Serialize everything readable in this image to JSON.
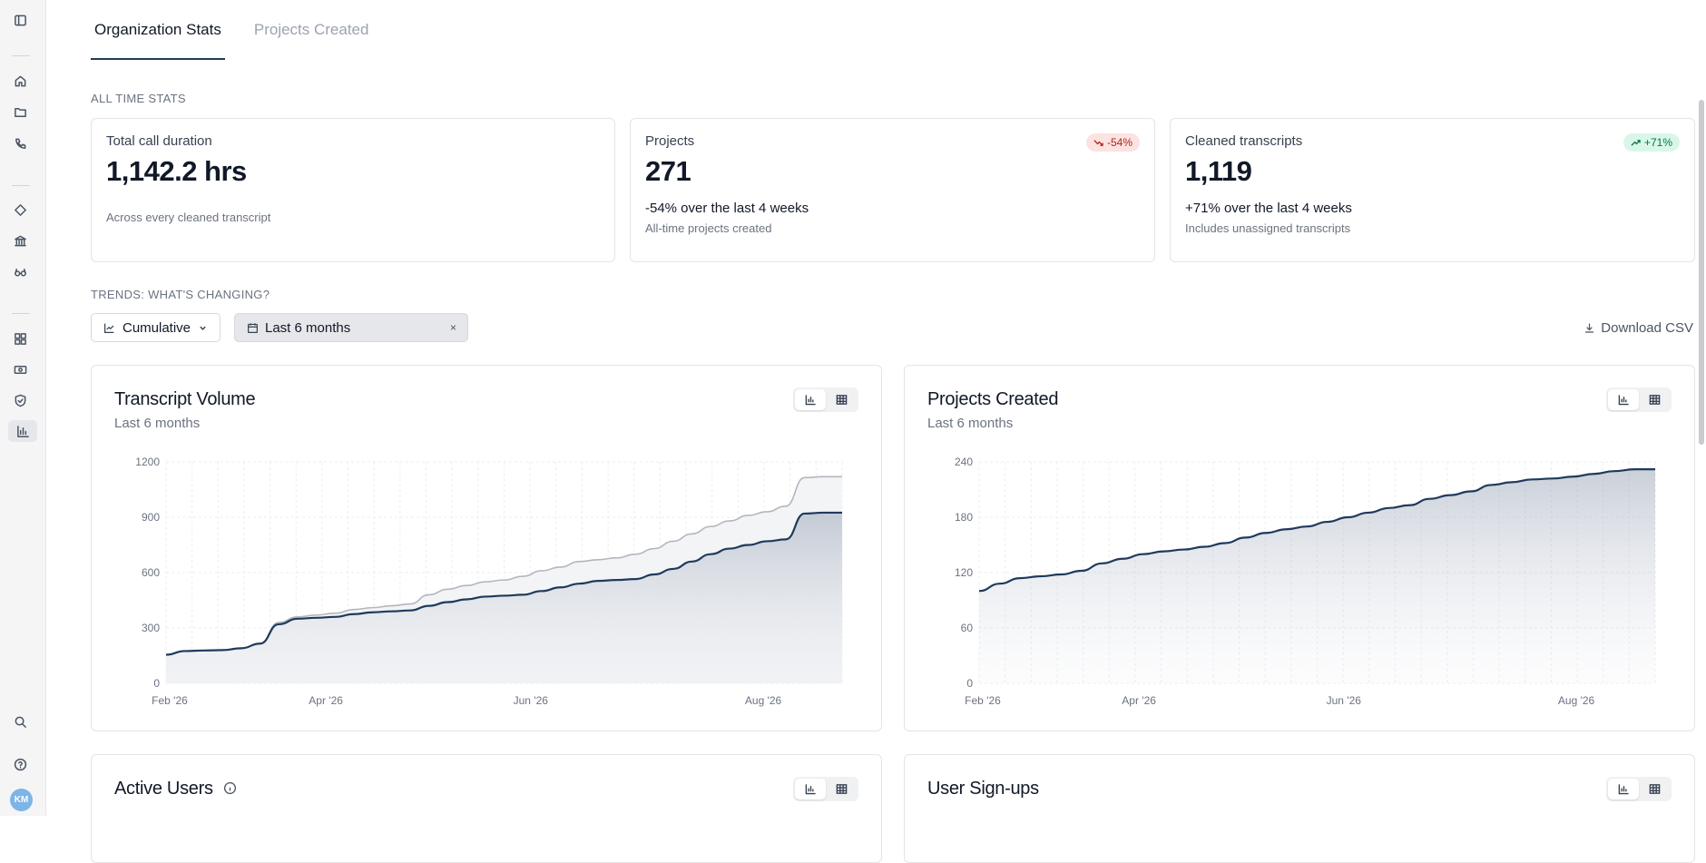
{
  "sidebar": {
    "icons": [
      "sidebar-toggle-icon",
      "home-icon",
      "folder-icon",
      "phone-icon",
      "diamond-icon",
      "bank-icon",
      "glasses-icon",
      "grid-icon",
      "money-icon",
      "shield-icon",
      "bar-chart-icon",
      "search-icon",
      "help-icon"
    ],
    "avatar": "KM"
  },
  "tabs": [
    "Organization Stats",
    "Projects Created"
  ],
  "all_time_label": "ALL TIME STATS",
  "stats": [
    {
      "title": "Total call duration",
      "value": "1,142.2 hrs",
      "change": "",
      "sub": "Across every cleaned transcript",
      "badge": ""
    },
    {
      "title": "Projects",
      "value": "271",
      "change": "-54% over the last 4 weeks",
      "sub": "All-time projects created",
      "badge": "-54%"
    },
    {
      "title": "Cleaned transcripts",
      "value": "1,119",
      "change": "+71% over the last 4 weeks",
      "sub": "Includes unassigned transcripts",
      "badge": "+71%"
    }
  ],
  "trends_label": "TRENDS: WHAT'S CHANGING?",
  "controls": {
    "mode": "Cumulative",
    "range": "Last 6 months",
    "clear": "×",
    "download": "Download CSV"
  },
  "charts": {
    "transcripts": {
      "title": "Transcript Volume",
      "subtitle": "Last 6 months"
    },
    "projects": {
      "title": "Projects Created",
      "subtitle": "Last 6 months"
    },
    "active_users": {
      "title": "Active Users"
    },
    "signups": {
      "title": "User Sign-ups"
    }
  },
  "chart_data": [
    {
      "type": "area",
      "title": "Transcript Volume",
      "subtitle": "Last 6 months",
      "x_tick_labels": [
        "Feb '26",
        "Apr '26",
        "Jun '26",
        "Aug '26"
      ],
      "y_ticks": [
        0,
        300,
        600,
        900,
        1200
      ],
      "ylim": [
        0,
        1200
      ],
      "x_range": [
        "2026-02-01",
        "2026-08-31"
      ],
      "grid": true,
      "series": [
        {
          "values": [
            155,
            175,
            178,
            180,
            190,
            215,
            320,
            350,
            355,
            360,
            375,
            385,
            390,
            395,
            420,
            440,
            455,
            470,
            475,
            480,
            500,
            520,
            540,
            555,
            560,
            565,
            590,
            620,
            660,
            700,
            730,
            750,
            770,
            780,
            920,
            925,
            925
          ]
        },
        {
          "values": [
            155,
            175,
            178,
            180,
            190,
            215,
            330,
            360,
            370,
            380,
            400,
            410,
            420,
            430,
            480,
            510,
            530,
            550,
            560,
            580,
            610,
            630,
            660,
            670,
            680,
            700,
            730,
            770,
            810,
            850,
            880,
            910,
            930,
            960,
            1115,
            1120,
            1120
          ]
        }
      ]
    },
    {
      "type": "area",
      "title": "Projects Created",
      "subtitle": "Last 6 months",
      "x_tick_labels": [
        "Feb '26",
        "Apr '26",
        "Jun '26",
        "Aug '26"
      ],
      "y_ticks": [
        0,
        60,
        120,
        180,
        240
      ],
      "ylim": [
        0,
        240
      ],
      "x_range": [
        "2026-02-01",
        "2026-08-31"
      ],
      "grid": true,
      "series": [
        {
          "values": [
            100,
            108,
            114,
            116,
            118,
            122,
            130,
            135,
            140,
            143,
            145,
            148,
            152,
            158,
            163,
            167,
            170,
            175,
            180,
            185,
            190,
            193,
            200,
            204,
            208,
            215,
            218,
            221,
            222,
            224,
            227,
            230,
            232,
            232
          ]
        }
      ]
    }
  ]
}
